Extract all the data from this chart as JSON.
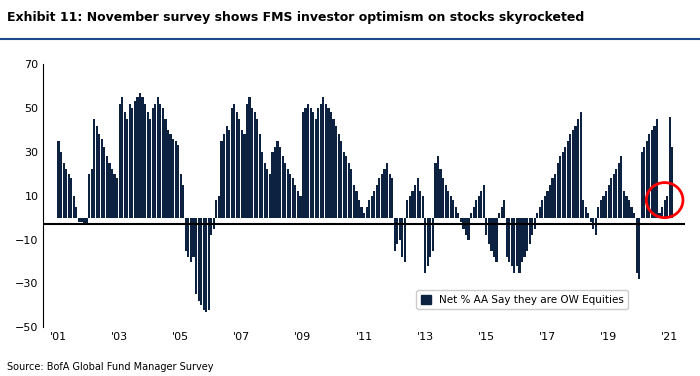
{
  "title": "Exhibit 11: November survey shows FMS investor optimism on stocks skyrocketed",
  "source": "Source: BofA Global Fund Manager Survey",
  "legend_label": "Net % AA Say they are OW Equities",
  "bar_color": "#0d2240",
  "circle_color": "#ff0000",
  "background_color": "#ffffff",
  "ylim": [
    -50,
    70
  ],
  "yticks": [
    -50,
    -30,
    -10,
    10,
    30,
    50,
    70
  ],
  "hline_y": -3,
  "xtick_labels": [
    "'01",
    "'03",
    "'05",
    "'07",
    "'09",
    "'11",
    "'13",
    "'15",
    "'17",
    "'19",
    "'21"
  ],
  "values": [
    35,
    30,
    25,
    22,
    20,
    18,
    10,
    5,
    -2,
    -2,
    -3,
    -3,
    20,
    22,
    45,
    42,
    38,
    36,
    32,
    28,
    25,
    22,
    20,
    18,
    52,
    55,
    48,
    45,
    52,
    50,
    53,
    55,
    57,
    55,
    52,
    48,
    45,
    50,
    52,
    55,
    52,
    50,
    45,
    40,
    38,
    36,
    35,
    33,
    20,
    15,
    -15,
    -18,
    -20,
    -18,
    -35,
    -38,
    -40,
    -42,
    -43,
    -42,
    -8,
    -5,
    8,
    10,
    35,
    38,
    42,
    40,
    50,
    52,
    48,
    45,
    40,
    38,
    52,
    55,
    50,
    48,
    45,
    38,
    30,
    25,
    22,
    20,
    30,
    32,
    35,
    32,
    28,
    25,
    22,
    20,
    18,
    15,
    12,
    10,
    48,
    50,
    52,
    50,
    48,
    45,
    50,
    52,
    55,
    52,
    50,
    48,
    45,
    42,
    38,
    35,
    30,
    28,
    25,
    22,
    15,
    12,
    8,
    5,
    2,
    5,
    8,
    10,
    12,
    15,
    18,
    20,
    22,
    25,
    20,
    18,
    -15,
    -12,
    -10,
    -18,
    -20,
    8,
    10,
    12,
    15,
    18,
    12,
    10,
    -25,
    -22,
    -18,
    -15,
    25,
    28,
    22,
    18,
    15,
    12,
    10,
    8,
    5,
    2,
    -2,
    -5,
    -8,
    -10,
    2,
    5,
    8,
    10,
    12,
    15,
    -8,
    -12,
    -15,
    -18,
    -20,
    2,
    5,
    8,
    -18,
    -20,
    -22,
    -25,
    -22,
    -25,
    -20,
    -18,
    -15,
    -12,
    -8,
    -5,
    2,
    5,
    8,
    10,
    12,
    15,
    18,
    20,
    25,
    28,
    30,
    32,
    35,
    38,
    40,
    42,
    45,
    48,
    8,
    5,
    2,
    -2,
    -5,
    -8,
    5,
    8,
    10,
    12,
    15,
    18,
    20,
    22,
    25,
    28,
    12,
    10,
    8,
    5,
    2,
    -25,
    -28,
    30,
    32,
    35,
    38,
    40,
    42,
    45,
    2,
    5,
    8,
    10,
    46,
    32
  ]
}
